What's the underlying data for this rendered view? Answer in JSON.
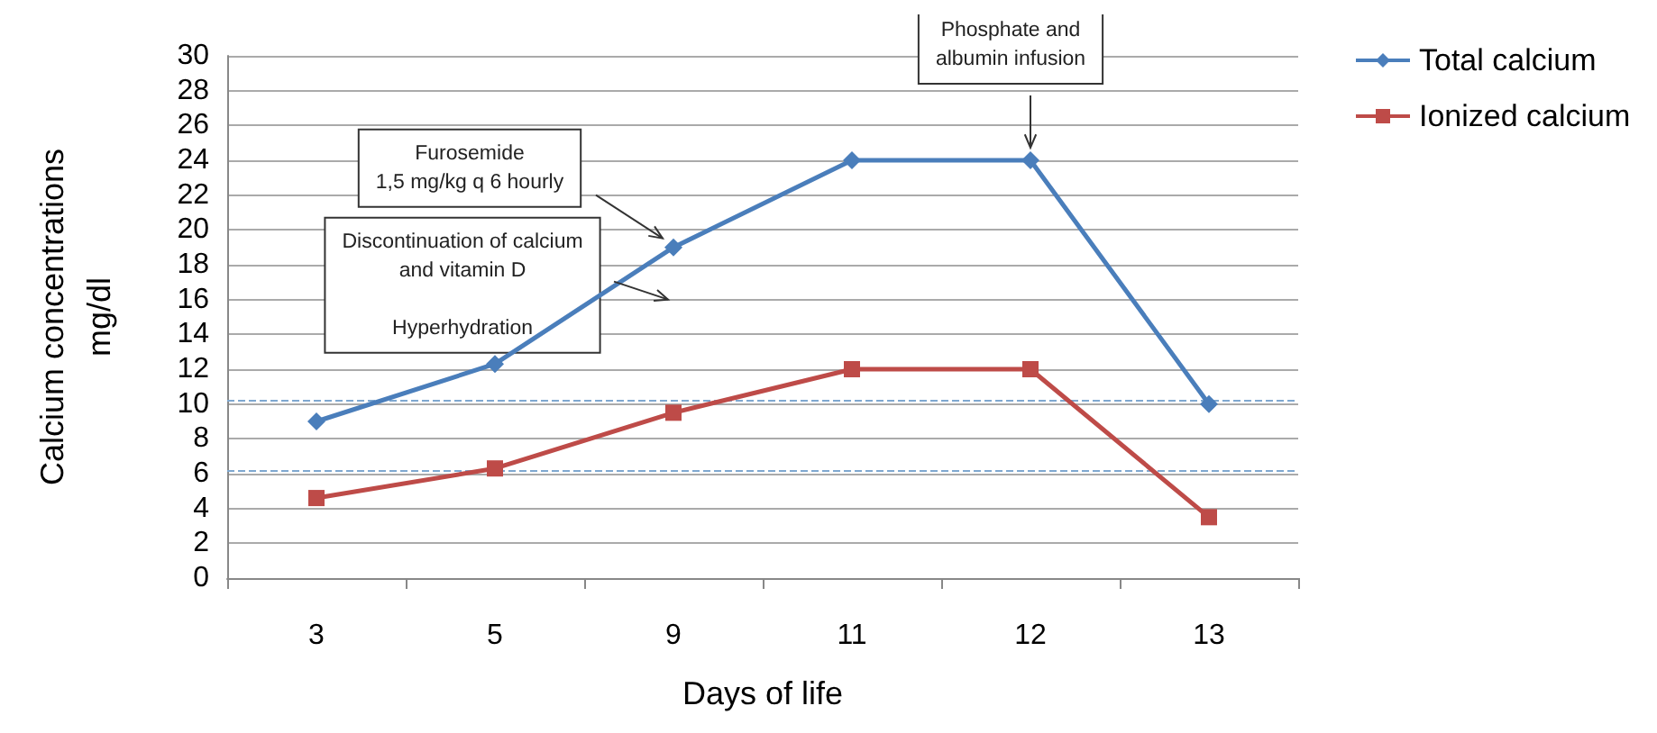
{
  "chart_data": {
    "type": "line",
    "xlabel": "Days of life",
    "ylabel": "Calcium concentrations\nmg/dl",
    "categories": [
      "3",
      "5",
      "9",
      "11",
      "12",
      "13"
    ],
    "series": [
      {
        "name": "Total calcium",
        "color": "#4a7ebb",
        "marker": "diamond",
        "values": [
          9,
          12.3,
          19,
          24,
          24,
          10
        ]
      },
      {
        "name": "Ionized calcium",
        "color": "#be4b48",
        "marker": "square",
        "values": [
          4.6,
          6.3,
          9.5,
          12,
          12,
          3.5
        ]
      }
    ],
    "ylim": [
      0,
      30
    ],
    "yticks": [
      0,
      2,
      4,
      6,
      8,
      10,
      12,
      14,
      16,
      18,
      20,
      22,
      24,
      26,
      28,
      30
    ],
    "grid": "y",
    "legend": "top right",
    "ref_lines": [
      {
        "axis": "y",
        "value": 10.2,
        "color": "#7fa8d0",
        "line_style": "dashed"
      },
      {
        "axis": "y",
        "value": 6.2,
        "color": "#7fa8d0",
        "line_style": "dashed"
      }
    ],
    "annotations": [
      "Furosemide\n1,5 mg/kg q 6 hourly",
      "Discontinuation of calcium\nand vitamin D\n\nHyperhydration",
      "Phosphate and\nalbumin infusion"
    ]
  }
}
